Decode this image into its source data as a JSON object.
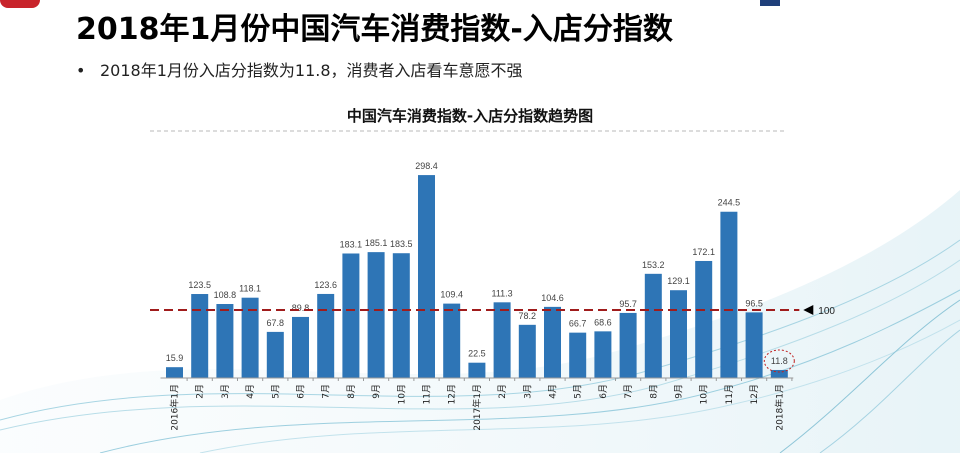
{
  "header": {
    "title": "2018年1月份中国汽车消费指数-入店分指数",
    "bullet": "2018年1月份入店分指数为11.8，消费者入店看车意愿不强"
  },
  "chart_data": {
    "type": "bar",
    "title": "中国汽车消费指数-入店分指数趋势图",
    "xlabel": "",
    "ylabel": "",
    "categories": [
      "2016年1月",
      "2月",
      "3月",
      "4月",
      "5月",
      "6月",
      "7月",
      "8月",
      "9月",
      "10月",
      "11月",
      "12月",
      "2017年1月",
      "2月",
      "3月",
      "4月",
      "5月",
      "6月",
      "7月",
      "8月",
      "9月",
      "10月",
      "11月",
      "12月",
      "2018年1月"
    ],
    "values": [
      15.9,
      123.5,
      108.8,
      118.1,
      67.8,
      89.8,
      123.6,
      183.1,
      185.1,
      183.5,
      298.4,
      109.4,
      22.5,
      111.3,
      78.2,
      104.6,
      66.7,
      68.6,
      95.7,
      153.2,
      129.1,
      172.1,
      244.5,
      96.5,
      11.8
    ],
    "value_labels": [
      "15.9",
      "123.5",
      "108.8",
      "118.1",
      "67.8",
      "89.8",
      "123.6",
      "183.1",
      "185.1",
      "183.5",
      "298.4",
      "109.4",
      "22.5",
      "111.3",
      "78.2",
      "104.6",
      "66.7",
      "68.6",
      "95.7",
      "153.2",
      "129.1",
      "172.1",
      "244.5",
      "96.5",
      "11.8"
    ],
    "reference_line": {
      "value": 100,
      "label": "100",
      "color": "#a01c1c"
    },
    "highlight_index": 24,
    "bar_color": "#2e75b6",
    "ylim": [
      0,
      320
    ],
    "grid": false,
    "legend": "none"
  }
}
